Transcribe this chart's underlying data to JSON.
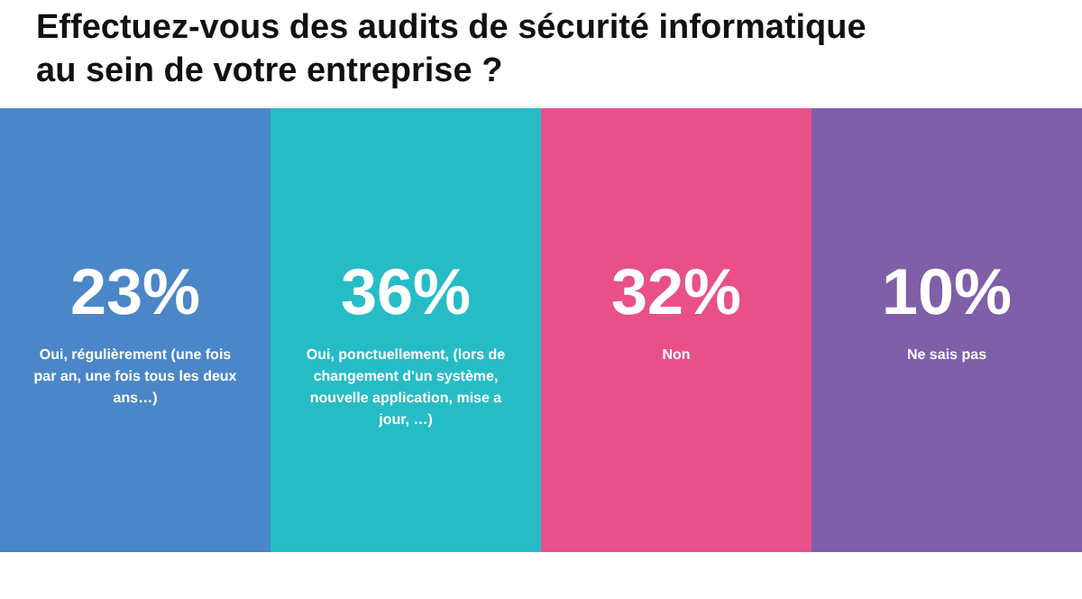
{
  "chart_data": {
    "type": "other",
    "title": "Effectuez-vous des audits de sécurité informatique au sein de votre entreprise ?",
    "categories": [
      "Oui, régulièrement (une fois par an, une fois tous les deux ans…)",
      "Oui, ponctuellement, (lors de changement d'un système, nouvelle application, mise a jour, …)",
      "Non",
      "Ne sais pas"
    ],
    "values": [
      23,
      36,
      32,
      10
    ],
    "value_labels": [
      "23%",
      "36%",
      "32%",
      "10%"
    ],
    "colors": [
      "#4a86c8",
      "#26bcc6",
      "#e9508a",
      "#7f5fa8"
    ]
  }
}
